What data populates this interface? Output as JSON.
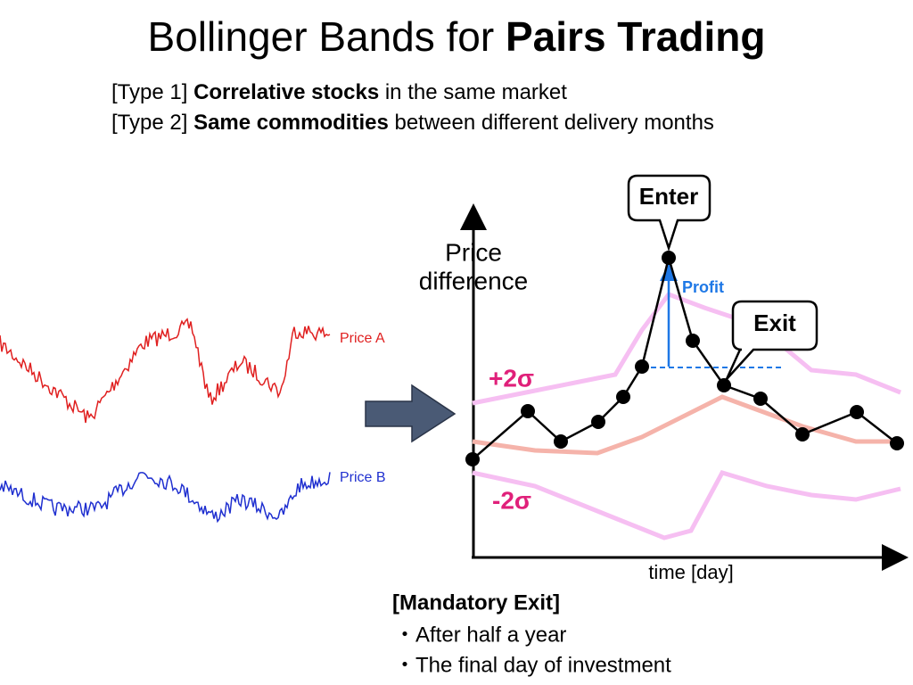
{
  "title": {
    "regular": "Bollinger Bands for",
    "bold": "Pairs Trading"
  },
  "types": [
    {
      "tag": "[Type 1]",
      "bold": "Correlative stocks",
      "rest": "in the same market"
    },
    {
      "tag": "[Type 2]",
      "bold": "Same commodities",
      "rest": "between different delivery months"
    }
  ],
  "left_chart": {
    "series_a": "Price A",
    "series_b": "Price B"
  },
  "right_chart": {
    "y_label": [
      "Price",
      "difference"
    ],
    "x_label": "time [day]",
    "upper_band": "+2σ",
    "lower_band": "-2σ",
    "enter": "Enter",
    "exit": "Exit",
    "profit": "Profit"
  },
  "mandatory_exit": {
    "heading": "[Mandatory Exit]",
    "items": [
      "・After half a year",
      "・The final day of investment"
    ]
  }
}
